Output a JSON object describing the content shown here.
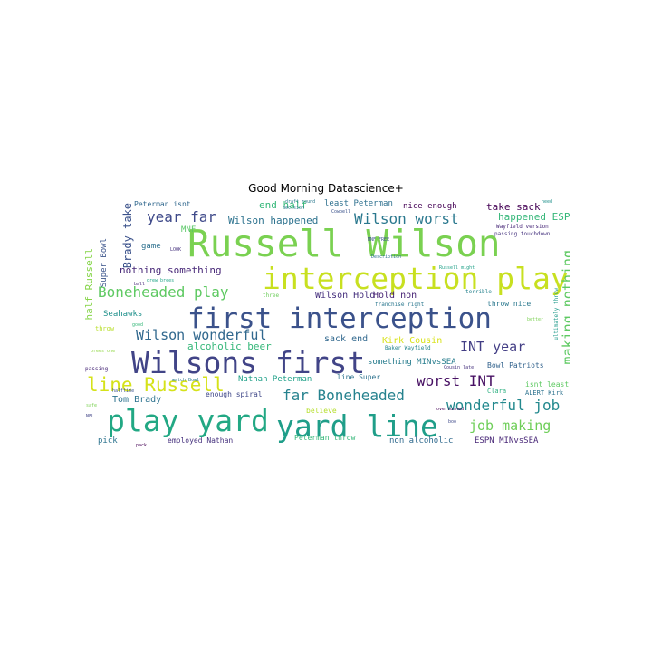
{
  "title": "Good Morning Datascience+",
  "words": [
    {
      "text": "Russell Wilson",
      "color": "#7ad151"
    },
    {
      "text": "interception play",
      "color": "#c8e020"
    },
    {
      "text": "first interception",
      "color": "#3b528b"
    },
    {
      "text": "Wilsons first",
      "color": "#414487"
    },
    {
      "text": "play yard",
      "color": "#22a884"
    },
    {
      "text": "yard line",
      "color": "#1f9e89"
    },
    {
      "text": "line Russell",
      "color": "#d5e21a"
    },
    {
      "text": "Boneheaded play",
      "color": "#5ec962"
    },
    {
      "text": "far Boneheaded",
      "color": "#26828e"
    },
    {
      "text": "Wilson worst",
      "color": "#2a788e"
    },
    {
      "text": "Wilson wonderful",
      "color": "#31688e"
    },
    {
      "text": "making nothing",
      "color": "#5ec962"
    },
    {
      "text": "year far",
      "color": "#3e4989"
    },
    {
      "text": "wonderful job",
      "color": "#23898e"
    },
    {
      "text": "job making",
      "color": "#6ece58"
    },
    {
      "text": "worst INT",
      "color": "#471063"
    },
    {
      "text": "INT year",
      "color": "#433e85"
    },
    {
      "text": "Wilson happened",
      "color": "#2c728e"
    },
    {
      "text": "nothing something",
      "color": "#482878"
    },
    {
      "text": "alcoholic beer",
      "color": "#35b779"
    },
    {
      "text": "take sack",
      "color": "#440154"
    },
    {
      "text": "happened ESPN",
      "color": "#35b779"
    },
    {
      "text": "end half",
      "color": "#35b779"
    },
    {
      "text": "Brady take",
      "color": "#3b528b"
    },
    {
      "text": "half Russell",
      "color": "#86d549"
    },
    {
      "text": "Wilson Hold",
      "color": "#46307e"
    },
    {
      "text": "Hold non",
      "color": "#482475"
    },
    {
      "text": "sack end",
      "color": "#31688e"
    },
    {
      "text": "Kirk Cousin",
      "color": "#d8e219"
    },
    {
      "text": "Tom Brady",
      "color": "#2c728e"
    },
    {
      "text": "Nathan Peterman",
      "color": "#1fa088"
    },
    {
      "text": "Seahawks",
      "color": "#21918c"
    },
    {
      "text": "something MINvsSEA",
      "color": "#287d8e"
    },
    {
      "text": "Bowl Patriots",
      "color": "#33638d"
    },
    {
      "text": "non alcoholic",
      "color": "#306a8e"
    },
    {
      "text": "ESPN MINvsSEA",
      "color": "#482777"
    },
    {
      "text": "Peterman throw",
      "color": "#35b779"
    },
    {
      "text": "enough spiral",
      "color": "#3f4788"
    },
    {
      "text": "employed Nathan",
      "color": "#46327e"
    },
    {
      "text": "Super Bowl",
      "color": "#3a538b"
    },
    {
      "text": "game",
      "color": "#2d708e"
    },
    {
      "text": "MNF",
      "color": "#58c765"
    },
    {
      "text": "pick",
      "color": "#2c738e"
    },
    {
      "text": "least Peterman",
      "color": "#2d708e"
    },
    {
      "text": "nice enough",
      "color": "#440154"
    },
    {
      "text": "Peterman isnt",
      "color": "#31688e"
    },
    {
      "text": "line Super",
      "color": "#2c728e"
    },
    {
      "text": "isnt least",
      "color": "#5ec962"
    },
    {
      "text": "throw nice",
      "color": "#2a788e"
    },
    {
      "text": "franchise right",
      "color": "#2a778e"
    },
    {
      "text": "believe",
      "color": "#b5de2b"
    },
    {
      "text": "Clara",
      "color": "#29af7f"
    },
    {
      "text": "ALERT Kirk",
      "color": "#2c728e"
    },
    {
      "text": "throw",
      "color": "#b8de29"
    },
    {
      "text": "brees one",
      "color": "#90d743"
    },
    {
      "text": "passing",
      "color": "#482878"
    },
    {
      "text": "Wayfield version",
      "color": "#482878"
    },
    {
      "text": "passing touchdown",
      "color": "#46337f"
    },
    {
      "text": "Baker Wayfield",
      "color": "#25848e"
    },
    {
      "text": "ultimately throw",
      "color": "#1f9a8a"
    },
    {
      "text": "MNF FREE",
      "color": "#3b528b"
    },
    {
      "text": "terrible",
      "color": "#26828e"
    },
    {
      "text": "three",
      "color": "#6ccd5a"
    },
    {
      "text": "Description",
      "color": "#2d708e"
    },
    {
      "text": "decision",
      "color": "#2a788e"
    },
    {
      "text": "pack",
      "color": "#440154"
    },
    {
      "text": "need",
      "color": "#21918c"
    },
    {
      "text": "boo",
      "color": "#3e4989"
    },
    {
      "text": "ball",
      "color": "#482878"
    },
    {
      "text": "better",
      "color": "#7ad151"
    },
    {
      "text": "good",
      "color": "#35b779"
    },
    {
      "text": "LOOK",
      "color": "#46327e"
    },
    {
      "text": "drew brees",
      "color": "#20a486"
    },
    {
      "text": "draft round",
      "color": "#2a788e"
    },
    {
      "text": "Russell might",
      "color": "#1fa188"
    },
    {
      "text": "Cowbell",
      "color": "#3b528b"
    },
    {
      "text": "safe",
      "color": "#7ad151"
    },
    {
      "text": "NFL",
      "color": "#414487"
    },
    {
      "text": "halftime",
      "color": "#3b528b"
    },
    {
      "text": "watch Bowl",
      "color": "#2a788e"
    },
    {
      "text": "Cousin late",
      "color": "#46327e"
    },
    {
      "text": "overturned",
      "color": "#440154"
    }
  ]
}
